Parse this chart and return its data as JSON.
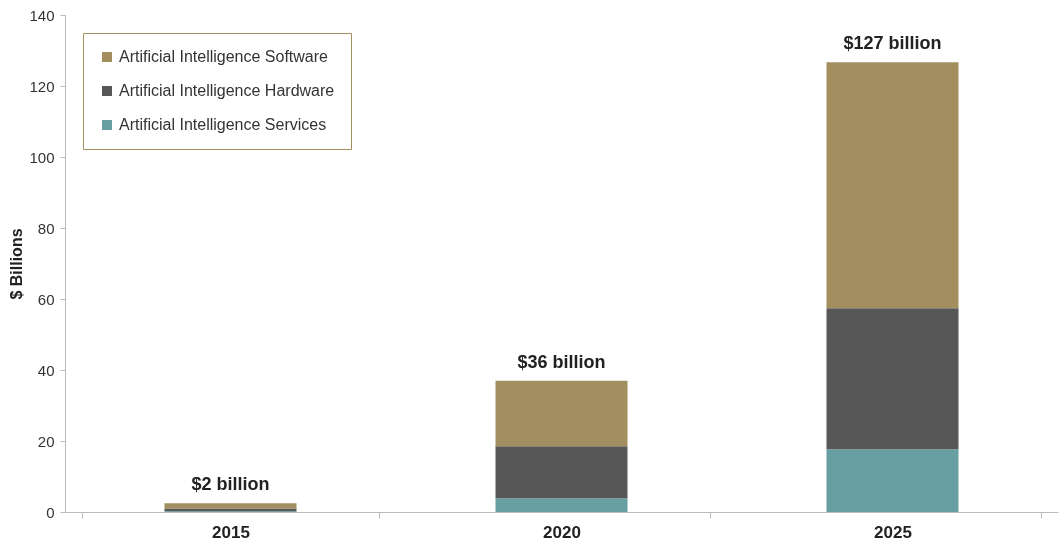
{
  "chart_data": {
    "type": "bar",
    "stacked": true,
    "ylabel": "$ Billions",
    "categories": [
      "2015",
      "2020",
      "2025"
    ],
    "series": [
      {
        "name": "Artificial Intelligence Services",
        "color": "#669ea2",
        "values": [
          0.2,
          3.9,
          17.7
        ]
      },
      {
        "name": "Artificial Intelligence Hardware",
        "color": "#575757",
        "values": [
          0.8,
          14.6,
          39.7
        ]
      },
      {
        "name": "Artificial Intelligence Software",
        "color": "#a38e5f",
        "values": [
          1.5,
          18.5,
          69.3
        ]
      }
    ],
    "totals": [
      "$2 billion",
      "$36 billion",
      "$127 billion"
    ],
    "ylim": [
      0,
      140
    ],
    "yticks": [
      0,
      20,
      40,
      60,
      80,
      100,
      120,
      140
    ],
    "grid": false,
    "legend": "top left"
  }
}
